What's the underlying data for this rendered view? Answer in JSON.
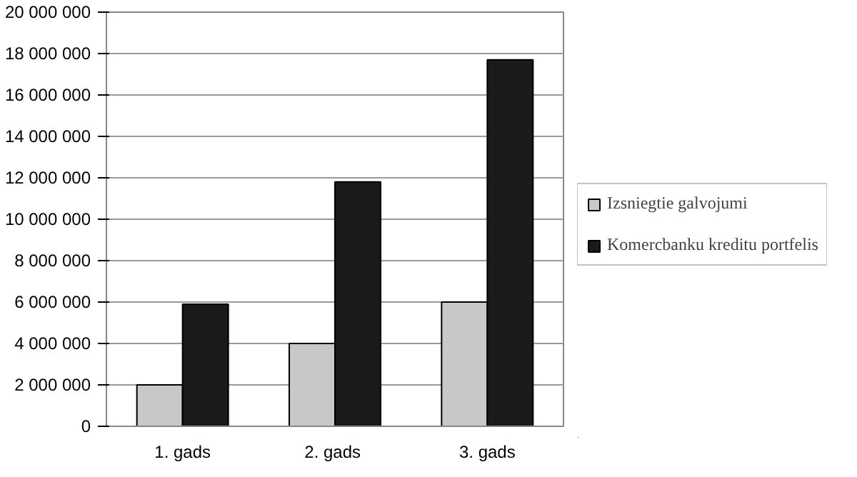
{
  "chart_data": {
    "type": "bar",
    "categories": [
      "1. gads",
      "2.  gads",
      "3. gads"
    ],
    "series": [
      {
        "name": "Izsniegtie galvojumi",
        "color": "#c8c8c8",
        "values": [
          2000000,
          4000000,
          6000000
        ]
      },
      {
        "name": "Komercbanku kreditu portfelis",
        "color": "#1a1a1a",
        "values": [
          5900000,
          11800000,
          17700000
        ]
      }
    ],
    "ylim": [
      0,
      20000000
    ],
    "yticks": [
      {
        "value": 0,
        "label": "0"
      },
      {
        "value": 2000000,
        "label": "2 000 000"
      },
      {
        "value": 4000000,
        "label": "4 000 000"
      },
      {
        "value": 6000000,
        "label": "6 000 000"
      },
      {
        "value": 8000000,
        "label": "8 000 000"
      },
      {
        "value": 10000000,
        "label": "10 000 000"
      },
      {
        "value": 12000000,
        "label": "12 000 000"
      },
      {
        "value": 14000000,
        "label": "14 000 000"
      },
      {
        "value": 16000000,
        "label": "16 000 000"
      },
      {
        "value": 18000000,
        "label": "18 000 000"
      },
      {
        "value": 20000000,
        "label": "20 000 000"
      }
    ],
    "grid": "y",
    "legend": "right"
  }
}
